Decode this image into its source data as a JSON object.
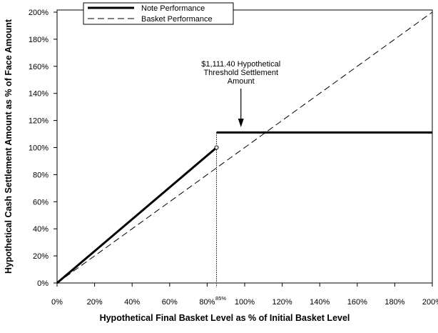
{
  "chart_data": {
    "type": "line",
    "title": "",
    "xlabel": "Hypothetical Final Basket Level as % of Initial Basket Level",
    "ylabel": "Hypothetical Cash Settlement Amount as % of Face Amount",
    "xlim": [
      0,
      200
    ],
    "ylim": [
      0,
      200
    ],
    "grid": false,
    "legend_position": "top-center",
    "x_ticks": [
      0,
      20,
      40,
      60,
      80,
      100,
      120,
      140,
      160,
      180,
      200
    ],
    "x_tick_labels": [
      "0%",
      "20%",
      "40%",
      "60%",
      "80%",
      "100%",
      "120%",
      "140%",
      "160%",
      "180%",
      "200%"
    ],
    "y_ticks": [
      0,
      20,
      40,
      60,
      80,
      100,
      120,
      140,
      160,
      180,
      200
    ],
    "y_tick_labels": [
      "0%",
      "20%",
      "40%",
      "60%",
      "80%",
      "100%",
      "120%",
      "140%",
      "160%",
      "180%",
      "200%"
    ],
    "threshold_marker": {
      "x": 85,
      "label": "85%"
    },
    "series": [
      {
        "name": "Note Performance",
        "style": "solid-thick",
        "segments": [
          {
            "x": [
              0,
              85
            ],
            "y": [
              0,
              100
            ]
          },
          {
            "x": [
              85,
              200
            ],
            "y": [
              111.14,
              111.14
            ]
          }
        ],
        "open_point": {
          "x": 85,
          "y": 100
        }
      },
      {
        "name": "Basket Performance",
        "style": "dashed",
        "segments": [
          {
            "x": [
              0,
              200
            ],
            "y": [
              0,
              200
            ]
          }
        ]
      }
    ],
    "annotation": {
      "lines": [
        "$1,111.40 Hypothetical",
        "Threshold Settlement",
        "Amount"
      ],
      "arrow_target": {
        "x": 98,
        "y": 111.14
      }
    },
    "colors": {
      "line": "#000000",
      "background": "#ffffff"
    }
  }
}
